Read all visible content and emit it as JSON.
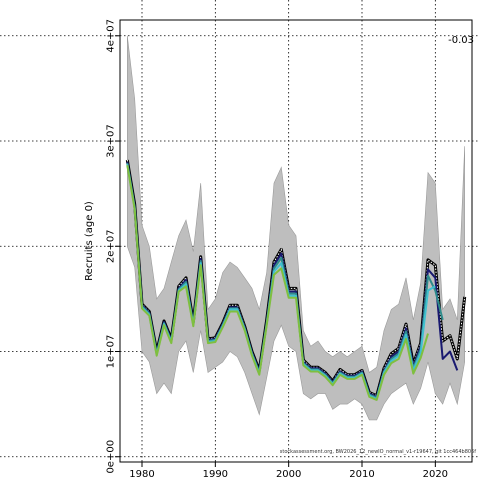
{
  "chart_data": {
    "type": "line",
    "title": "",
    "xlabel": "",
    "ylabel": "Recruits (age 0)",
    "xlim": [
      1977,
      2025
    ],
    "ylim": [
      -500000,
      41500000
    ],
    "x_ticks": [
      1980,
      1990,
      2000,
      2010,
      2020
    ],
    "x_tick_labels": [
      "1980",
      "1990",
      "2000",
      "2010",
      "2020"
    ],
    "y_ticks": [
      0,
      10000000,
      20000000,
      30000000,
      40000000
    ],
    "y_tick_labels": [
      "0e+00",
      "1e+07",
      "2e+07",
      "3e+07",
      "4e+07"
    ],
    "grid": true,
    "annotation": "-0.03",
    "caption": "stockassessment.org, BW2026_12_newIO_normal_v1-r19647, git 1cc464b806f",
    "band": {
      "x": [
        1978,
        1979,
        1980,
        1981,
        1982,
        1983,
        1984,
        1985,
        1986,
        1987,
        1988,
        1989,
        1990,
        1991,
        1992,
        1993,
        1994,
        1995,
        1996,
        1997,
        1998,
        1999,
        2000,
        2001,
        2002,
        2003,
        2004,
        2005,
        2006,
        2007,
        2008,
        2009,
        2010,
        2011,
        2012,
        2013,
        2014,
        2015,
        2016,
        2017,
        2018,
        2019,
        2020,
        2021,
        2022,
        2023,
        2024
      ],
      "upper": [
        40000000,
        34000000,
        22000000,
        20000000,
        15000000,
        16000000,
        18500000,
        21000000,
        22500000,
        19500000,
        26000000,
        14000000,
        15000000,
        17500000,
        18500000,
        18000000,
        17000000,
        16000000,
        14000000,
        17500000,
        26000000,
        27500000,
        22000000,
        21000000,
        12000000,
        10500000,
        11000000,
        10000000,
        9500000,
        10000000,
        9500000,
        10000000,
        10500000,
        8000000,
        8500000,
        12000000,
        14000000,
        14500000,
        17000000,
        13000000,
        16500000,
        27000000,
        26000000,
        14000000,
        15000000,
        13000000,
        29500000
      ],
      "lower": [
        20000000,
        18000000,
        10000000,
        9000000,
        6000000,
        7000000,
        6000000,
        10000000,
        11000000,
        8000000,
        12000000,
        8000000,
        8500000,
        9000000,
        10000000,
        9500000,
        8000000,
        6000000,
        4000000,
        7500000,
        11000000,
        12500000,
        10500000,
        10000000,
        6000000,
        5500000,
        6000000,
        6000000,
        4500000,
        5000000,
        5000000,
        5500000,
        5000000,
        3500000,
        3500000,
        5000000,
        6000000,
        6500000,
        7000000,
        5000000,
        6500000,
        9000000,
        6000000,
        5000000,
        7000000,
        5000000,
        9000000
      ]
    },
    "series": [
      {
        "color": "#000000",
        "dashed": true,
        "x": [
          1978,
          1979,
          1980,
          1981,
          1982,
          1983,
          1984,
          1985,
          1986,
          1987,
          1988,
          1989,
          1990,
          1991,
          1992,
          1993,
          1994,
          1995,
          1996,
          1997,
          1998,
          1999,
          2000,
          2001,
          2002,
          2003,
          2004,
          2005,
          2006,
          2007,
          2008,
          2009,
          2010,
          2011,
          2012,
          2013,
          2014,
          2015,
          2016,
          2017,
          2018,
          2019,
          2020,
          2021,
          2022,
          2023,
          2024
        ],
        "values": [
          28200000,
          24000000,
          14500000,
          13800000,
          10000000,
          12900000,
          11200000,
          16200000,
          17000000,
          12800000,
          19000000,
          11200000,
          11300000,
          12700000,
          14400000,
          14400000,
          12400000,
          10000000,
          8200000,
          13000000,
          18500000,
          19700000,
          16000000,
          16000000,
          9200000,
          8500000,
          8500000,
          8000000,
          7200000,
          8300000,
          7800000,
          7800000,
          8200000,
          6100000,
          5800000,
          8400000,
          9800000,
          10300000,
          12600000,
          8800000,
          10800000,
          18700000,
          18200000,
          11000000,
          11500000,
          9300000,
          15200000
        ]
      },
      {
        "color": "#191970",
        "dashed": false,
        "x": [
          1978,
          1979,
          1980,
          1981,
          1982,
          1983,
          1984,
          1985,
          1986,
          1987,
          1988,
          1989,
          1990,
          1991,
          1992,
          1993,
          1994,
          1995,
          1996,
          1997,
          1998,
          1999,
          2000,
          2001,
          2002,
          2003,
          2004,
          2005,
          2006,
          2007,
          2008,
          2009,
          2010,
          2011,
          2012,
          2013,
          2014,
          2015,
          2016,
          2017,
          2018,
          2019,
          2020,
          2021,
          2022,
          2023
        ],
        "values": [
          28000000,
          23800000,
          14400000,
          13700000,
          9900000,
          12800000,
          11100000,
          16000000,
          16800000,
          12700000,
          18800000,
          11100000,
          11200000,
          12600000,
          14200000,
          14200000,
          12300000,
          9900000,
          8100000,
          12800000,
          18200000,
          19300000,
          15700000,
          15700000,
          9000000,
          8400000,
          8400000,
          7900000,
          7100000,
          8100000,
          7700000,
          7700000,
          8100000,
          6000000,
          5700000,
          8200000,
          9500000,
          10000000,
          12200000,
          8600000,
          10500000,
          17800000,
          17000000,
          9300000,
          10000000,
          8200000
        ]
      },
      {
        "color": "#2e8b8b",
        "dashed": false,
        "x": [
          1978,
          1979,
          1980,
          1981,
          1982,
          1983,
          1984,
          1985,
          1986,
          1987,
          1988,
          1989,
          1990,
          1991,
          1992,
          1993,
          1994,
          1995,
          1996,
          1997,
          1998,
          1999,
          2000,
          2001,
          2002,
          2003,
          2004,
          2005,
          2006,
          2007,
          2008,
          2009,
          2010,
          2011,
          2012,
          2013,
          2014,
          2015,
          2016,
          2017,
          2018,
          2019,
          2020,
          2021
        ],
        "values": [
          27900000,
          23700000,
          14300000,
          13600000,
          9800000,
          12700000,
          11000000,
          15900000,
          16600000,
          12600000,
          18600000,
          11000000,
          11100000,
          12500000,
          14100000,
          14100000,
          12200000,
          9800000,
          8000000,
          12700000,
          17900000,
          18900000,
          15500000,
          15500000,
          8900000,
          8300000,
          8300000,
          7800000,
          7000000,
          8000000,
          7600000,
          7600000,
          8000000,
          5900000,
          5600000,
          8100000,
          9300000,
          9800000,
          11900000,
          8400000,
          10200000,
          17200000,
          15800000,
          13000000
        ]
      },
      {
        "color": "#40c0d0",
        "dashed": false,
        "x": [
          1978,
          1979,
          1980,
          1981,
          1982,
          1983,
          1984,
          1985,
          1986,
          1987,
          1988,
          1989,
          1990,
          1991,
          1992,
          1993,
          1994,
          1995,
          1996,
          1997,
          1998,
          1999,
          2000,
          2001,
          2002,
          2003,
          2004,
          2005,
          2006,
          2007,
          2008,
          2009,
          2010,
          2011,
          2012,
          2013,
          2014,
          2015,
          2016,
          2017,
          2018,
          2019,
          2020
        ],
        "values": [
          27800000,
          23600000,
          14200000,
          13500000,
          9700000,
          12600000,
          10900000,
          15800000,
          16400000,
          12500000,
          18400000,
          10900000,
          11000000,
          12400000,
          14000000,
          14000000,
          12100000,
          9700000,
          7900000,
          12600000,
          17600000,
          18400000,
          15300000,
          15300000,
          8800000,
          8200000,
          8200000,
          7700000,
          6900000,
          7900000,
          7500000,
          7500000,
          7900000,
          5800000,
          5500000,
          8000000,
          9100000,
          9600000,
          11600000,
          8200000,
          9900000,
          15800000,
          16200000
        ]
      },
      {
        "color": "#7fbf3f",
        "dashed": false,
        "x": [
          1978,
          1979,
          1980,
          1981,
          1982,
          1983,
          1984,
          1985,
          1986,
          1987,
          1988,
          1989,
          1990,
          1991,
          1992,
          1993,
          1994,
          1995,
          1996,
          1997,
          1998,
          1999,
          2000,
          2001,
          2002,
          2003,
          2004,
          2005,
          2006,
          2007,
          2008,
          2009,
          2010,
          2011,
          2012,
          2013,
          2014,
          2015,
          2016,
          2017,
          2018,
          2019
        ],
        "values": [
          27700000,
          23500000,
          14100000,
          13400000,
          9600000,
          12500000,
          10800000,
          15700000,
          16200000,
          12400000,
          18200000,
          10800000,
          10900000,
          12300000,
          13800000,
          13800000,
          12000000,
          9600000,
          7800000,
          12500000,
          17300000,
          17900000,
          15100000,
          15100000,
          8700000,
          8100000,
          8100000,
          7600000,
          6800000,
          7800000,
          7400000,
          7400000,
          7800000,
          5700000,
          5400000,
          7800000,
          8900000,
          9300000,
          11200000,
          7900000,
          9400000,
          11700000
        ]
      }
    ]
  }
}
